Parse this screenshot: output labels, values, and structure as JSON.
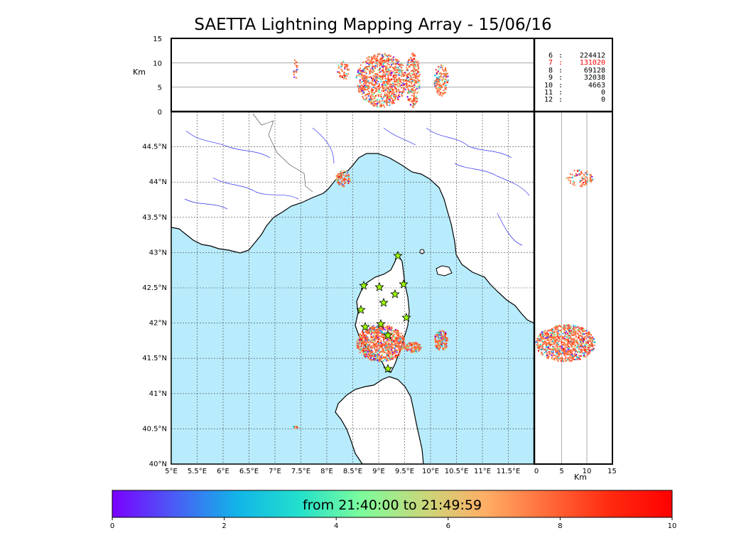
{
  "title": "SAETTA Lightning Mapping Array - 15/06/16",
  "top_panel": {
    "ylabel": "Km",
    "yticks": [
      "15",
      "10",
      "5",
      "0"
    ]
  },
  "side_panel": {
    "xlabel": "Km",
    "xticks": [
      "0",
      "5",
      "10",
      "15"
    ]
  },
  "map": {
    "lon_ticks": [
      "5°E",
      "5.5°E",
      "6°E",
      "6.5°E",
      "7°E",
      "7.5°E",
      "8°E",
      "8.5°E",
      "9°E",
      "9.5°E",
      "10°E",
      "10.5°E",
      "11°E",
      "11.5°E"
    ],
    "lat_ticks": [
      "40°N",
      "40.5°N",
      "41°N",
      "41.5°N",
      "42°N",
      "42.5°N",
      "43°N",
      "43.5°N",
      "44°N",
      "44.5°N"
    ],
    "sea_color": "#b8ecfc",
    "land_color": "#ffffff",
    "river_color": "#3030f0",
    "station_color": "#9cff00"
  },
  "stations_count_table": [
    {
      "level": "6",
      "count": "224412",
      "highlight": false
    },
    {
      "level": "7",
      "count": "131020",
      "highlight": true
    },
    {
      "level": "8",
      "count": "69128",
      "highlight": false
    },
    {
      "level": "9",
      "count": "32038",
      "highlight": false
    },
    {
      "level": "10",
      "count": "4663",
      "highlight": false
    },
    {
      "level": "11",
      "count": "0",
      "highlight": false
    },
    {
      "level": "12",
      "count": "0",
      "highlight": false
    }
  ],
  "colorbar": {
    "label": "from 21:40:00 to 21:49:59",
    "ticks": [
      "0",
      "2",
      "4",
      "6",
      "8",
      "10"
    ],
    "colors": [
      "#7a00ff",
      "#4a5cf5",
      "#12b4e8",
      "#22e0cc",
      "#7cfc9c",
      "#c8d87a",
      "#ffae66",
      "#ff6a3a",
      "#ff2a10",
      "#ff0000"
    ]
  }
}
